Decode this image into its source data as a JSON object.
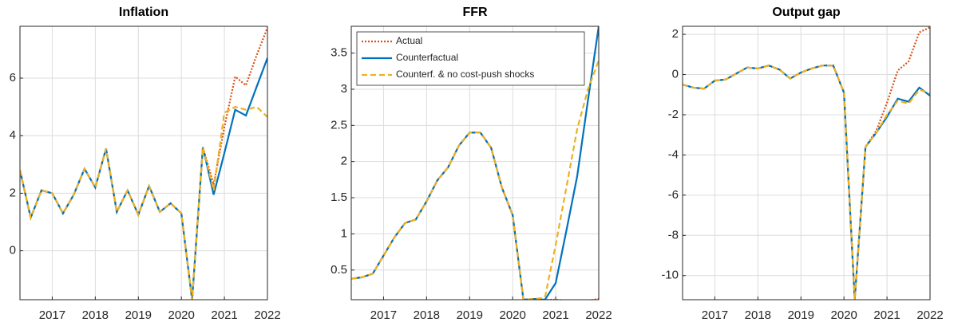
{
  "chart_data": [
    {
      "type": "line",
      "title": "Inflation",
      "x": [
        2016.25,
        2016.5,
        2016.75,
        2017,
        2017.25,
        2017.5,
        2017.75,
        2018,
        2018.25,
        2018.5,
        2018.75,
        2019,
        2019.25,
        2019.5,
        2019.75,
        2020,
        2020.25,
        2020.5,
        2020.75,
        2021,
        2021.25,
        2021.5,
        2021.75,
        2022
      ],
      "series": [
        {
          "color": "#D95319",
          "style": "dotted",
          "values": [
            2.8,
            1.15,
            2.1,
            2.0,
            1.3,
            1.95,
            2.85,
            2.2,
            3.55,
            1.35,
            2.1,
            1.25,
            2.25,
            1.35,
            1.65,
            1.3,
            -1.7,
            3.6,
            2.3,
            4.3,
            6.05,
            5.75,
            6.8,
            7.75
          ]
        },
        {
          "color": "#0072BD",
          "style": "solid",
          "values": [
            2.8,
            1.15,
            2.1,
            2.0,
            1.3,
            1.95,
            2.85,
            2.2,
            3.55,
            1.35,
            2.1,
            1.25,
            2.25,
            1.35,
            1.65,
            1.3,
            -1.7,
            3.6,
            1.95,
            3.4,
            4.9,
            4.7,
            5.7,
            6.7
          ]
        },
        {
          "color": "#EDB120",
          "style": "dashed",
          "values": [
            2.8,
            1.15,
            2.1,
            2.0,
            1.3,
            1.95,
            2.85,
            2.2,
            3.55,
            1.35,
            2.1,
            1.25,
            2.25,
            1.35,
            1.65,
            1.3,
            -1.7,
            3.6,
            2.1,
            4.8,
            5.0,
            4.9,
            5.0,
            4.65
          ]
        }
      ],
      "xlim": [
        2016.25,
        2022
      ],
      "xticks": [
        2017,
        2018,
        2019,
        2020,
        2021,
        2022
      ],
      "ylim": [
        -1.7,
        7.8
      ],
      "yticks": [
        0,
        2,
        4,
        6
      ],
      "grid": true
    },
    {
      "type": "line",
      "title": "FFR",
      "x": [
        2016.25,
        2016.5,
        2016.75,
        2017,
        2017.25,
        2017.5,
        2017.75,
        2018,
        2018.25,
        2018.5,
        2018.75,
        2019,
        2019.25,
        2019.5,
        2019.75,
        2020,
        2020.25,
        2020.5,
        2020.75,
        2021,
        2021.25,
        2021.5,
        2021.75,
        2022
      ],
      "series": [
        {
          "name": "Actual",
          "color": "#D95319",
          "style": "dotted",
          "values": [
            0.38,
            0.4,
            0.45,
            0.7,
            0.95,
            1.15,
            1.2,
            1.45,
            1.74,
            1.92,
            2.22,
            2.4,
            2.4,
            2.19,
            1.64,
            1.26,
            0.09,
            0.1,
            0.09,
            0.09,
            0.08,
            0.08,
            0.08,
            0.1
          ]
        },
        {
          "name": "Counterfactual",
          "color": "#0072BD",
          "style": "solid",
          "values": [
            0.38,
            0.4,
            0.45,
            0.7,
            0.95,
            1.15,
            1.2,
            1.45,
            1.74,
            1.92,
            2.22,
            2.4,
            2.4,
            2.19,
            1.64,
            1.26,
            0.09,
            0.1,
            0.09,
            0.32,
            1.05,
            1.8,
            2.85,
            3.87
          ]
        },
        {
          "name": "Counterf. & no cost-push shocks",
          "color": "#EDB120",
          "style": "dashed",
          "values": [
            0.38,
            0.4,
            0.45,
            0.7,
            0.95,
            1.15,
            1.2,
            1.45,
            1.74,
            1.92,
            2.22,
            2.4,
            2.4,
            2.19,
            1.64,
            1.26,
            0.09,
            0.1,
            0.12,
            0.85,
            1.65,
            2.45,
            3.0,
            3.4
          ]
        }
      ],
      "xlim": [
        2016.25,
        2022
      ],
      "xticks": [
        2017,
        2018,
        2019,
        2020,
        2021,
        2022
      ],
      "ylim": [
        0.09,
        3.87
      ],
      "yticks": [
        0.5,
        1,
        1.5,
        2,
        2.5,
        3,
        3.5
      ],
      "grid": true,
      "legend": "northwest"
    },
    {
      "type": "line",
      "title": "Output gap",
      "x": [
        2016.25,
        2016.5,
        2016.75,
        2017,
        2017.25,
        2017.5,
        2017.75,
        2018,
        2018.25,
        2018.5,
        2018.75,
        2019,
        2019.25,
        2019.5,
        2019.75,
        2020,
        2020.25,
        2020.5,
        2020.75,
        2021,
        2021.25,
        2021.5,
        2021.75,
        2022
      ],
      "series": [
        {
          "color": "#D95319",
          "style": "dotted",
          "values": [
            -0.5,
            -0.65,
            -0.7,
            -0.3,
            -0.25,
            0.05,
            0.35,
            0.3,
            0.45,
            0.25,
            -0.2,
            0.1,
            0.3,
            0.45,
            0.45,
            -0.9,
            -11.2,
            -3.6,
            -2.8,
            -1.4,
            0.2,
            0.65,
            2.1,
            2.35
          ]
        },
        {
          "color": "#0072BD",
          "style": "solid",
          "values": [
            -0.5,
            -0.65,
            -0.7,
            -0.3,
            -0.25,
            0.05,
            0.35,
            0.3,
            0.45,
            0.25,
            -0.2,
            0.1,
            0.3,
            0.45,
            0.45,
            -0.9,
            -11.2,
            -3.6,
            -2.9,
            -2.1,
            -1.2,
            -1.35,
            -0.65,
            -1.05
          ]
        },
        {
          "color": "#EDB120",
          "style": "dashed",
          "values": [
            -0.5,
            -0.65,
            -0.7,
            -0.3,
            -0.25,
            0.05,
            0.35,
            0.3,
            0.45,
            0.25,
            -0.2,
            0.1,
            0.3,
            0.45,
            0.45,
            -0.9,
            -11.2,
            -3.6,
            -2.9,
            -2.0,
            -1.3,
            -1.45,
            -0.75,
            -0.95
          ]
        }
      ],
      "xlim": [
        2016.25,
        2022
      ],
      "xticks": [
        2017,
        2018,
        2019,
        2020,
        2021,
        2022
      ],
      "ylim": [
        -11.2,
        2.4
      ],
      "yticks": [
        -10,
        -8,
        -6,
        -4,
        -2,
        0,
        2
      ],
      "grid": true
    }
  ]
}
